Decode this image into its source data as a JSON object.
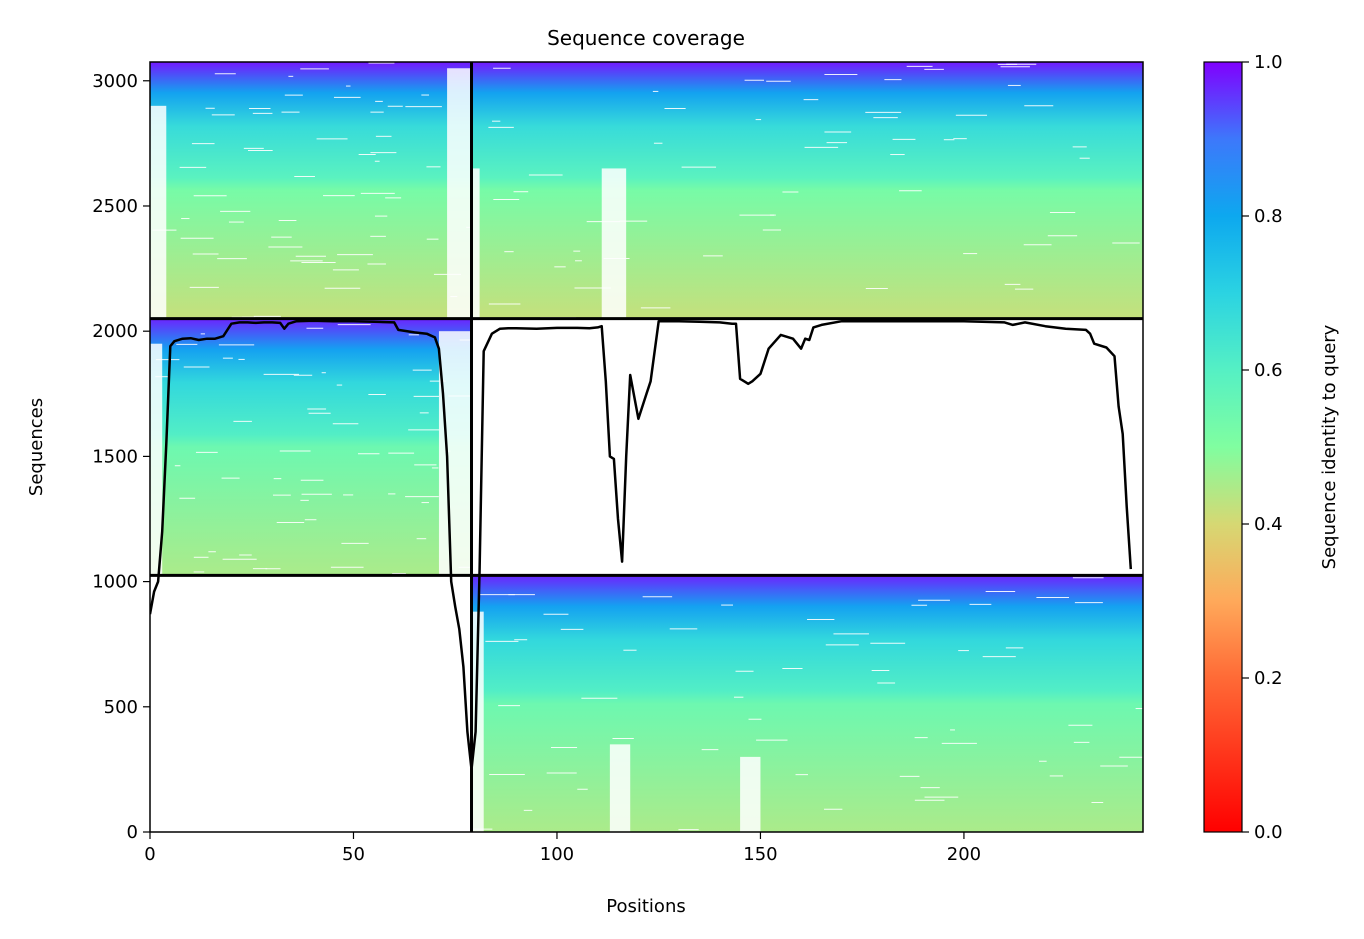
{
  "chart_data": {
    "type": "heatmap",
    "title": "Sequence coverage",
    "xlabel": "Positions",
    "ylabel": "Sequences",
    "xlim": [
      0,
      244
    ],
    "ylim": [
      0,
      3075
    ],
    "xticks": [
      0,
      50,
      100,
      150,
      200
    ],
    "yticks": [
      0,
      500,
      1000,
      1500,
      2000,
      2500,
      3000
    ],
    "colorbar": {
      "label": "Sequence identity to query",
      "colormap": "rainbow_r",
      "range": [
        0,
        1
      ],
      "ticks": [
        "0.0",
        "0.2",
        "0.4",
        "0.6",
        "0.8",
        "1.0"
      ]
    },
    "blocks": [
      {
        "x": [
          0,
          79
        ],
        "y": [
          2050,
          3075
        ],
        "identity_bottom": 0.42,
        "identity_top": 0.98,
        "filled": true
      },
      {
        "x": [
          79,
          244
        ],
        "y": [
          2050,
          3075
        ],
        "identity_bottom": 0.42,
        "identity_top": 0.98,
        "filled": true
      },
      {
        "x": [
          0,
          79
        ],
        "y": [
          1025,
          2050
        ],
        "identity_bottom": 0.45,
        "identity_top": 0.97,
        "filled": true
      },
      {
        "x": [
          79,
          244
        ],
        "y": [
          1025,
          2050
        ],
        "filled": false
      },
      {
        "x": [
          0,
          79
        ],
        "y": [
          0,
          1025
        ],
        "filled": false
      },
      {
        "x": [
          79,
          244
        ],
        "y": [
          0,
          1025
        ],
        "identity_bottom": 0.45,
        "identity_top": 0.97,
        "filled": true
      }
    ],
    "gap_regions": [
      {
        "x": [
          0,
          4
        ],
        "y": [
          2050,
          2900
        ]
      },
      {
        "x": [
          73,
          79
        ],
        "y": [
          2050,
          3050
        ]
      },
      {
        "x": [
          79,
          81
        ],
        "y": [
          2050,
          2650
        ]
      },
      {
        "x": [
          111,
          117
        ],
        "y": [
          2050,
          2650
        ]
      },
      {
        "x": [
          0,
          3
        ],
        "y": [
          1025,
          1950
        ]
      },
      {
        "x": [
          71,
          79
        ],
        "y": [
          1025,
          2000
        ]
      },
      {
        "x": [
          79,
          82
        ],
        "y": [
          0,
          880
        ]
      },
      {
        "x": [
          113,
          118
        ],
        "y": [
          0,
          350
        ]
      },
      {
        "x": [
          145,
          150
        ],
        "y": [
          0,
          300
        ]
      }
    ],
    "series": [
      {
        "name": "",
        "x": [
          0,
          1,
          2,
          3,
          4,
          5,
          6,
          8,
          10,
          12,
          14,
          16,
          18,
          20,
          22,
          24,
          26,
          28,
          30,
          32,
          33,
          34,
          36,
          40,
          45,
          50,
          55,
          60,
          61,
          65,
          68,
          70,
          71,
          72,
          73,
          74,
          75,
          76,
          77,
          78,
          79,
          80,
          81,
          82,
          84,
          86,
          88,
          90,
          95,
          100,
          105,
          108,
          110,
          111,
          112,
          113,
          114,
          115,
          116,
          117,
          118,
          120,
          122,
          123,
          125,
          130,
          135,
          140,
          143,
          144,
          145,
          146,
          147,
          148,
          150,
          152,
          155,
          158,
          160,
          161,
          162,
          163,
          165,
          170,
          180,
          190,
          200,
          210,
          212,
          215,
          220,
          225,
          230,
          231,
          232,
          235,
          237,
          238,
          239,
          240,
          241
        ],
        "y": [
          870,
          960,
          1000,
          1200,
          1550,
          1940,
          1960,
          1970,
          1972,
          1965,
          1970,
          1970,
          1980,
          2030,
          2035,
          2035,
          2033,
          2035,
          2035,
          2033,
          2010,
          2030,
          2040,
          2042,
          2040,
          2040,
          2038,
          2035,
          2005,
          1995,
          1990,
          1975,
          1930,
          1750,
          1500,
          1000,
          900,
          810,
          660,
          400,
          250,
          400,
          1050,
          1920,
          1990,
          2010,
          2012,
          2012,
          2010,
          2013,
          2013,
          2012,
          2015,
          2020,
          1800,
          1500,
          1490,
          1250,
          1080,
          1500,
          1825,
          1650,
          1750,
          1800,
          2040,
          2040,
          2038,
          2035,
          2030,
          2030,
          1810,
          1800,
          1790,
          1800,
          1830,
          1930,
          1985,
          1970,
          1930,
          1970,
          1965,
          2015,
          2025,
          2040,
          2040,
          2040,
          2040,
          2035,
          2025,
          2035,
          2020,
          2010,
          2005,
          1990,
          1950,
          1935,
          1900,
          1700,
          1590,
          1300,
          1050
        ]
      }
    ]
  }
}
